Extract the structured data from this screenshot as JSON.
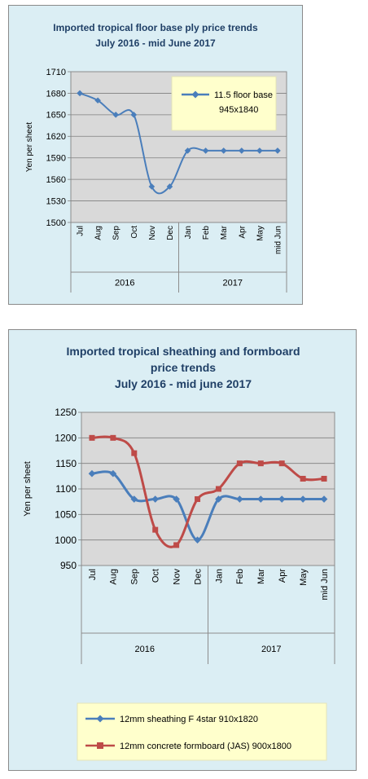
{
  "chart_data": [
    {
      "type": "line",
      "title": [
        "Imported tropical floor base ply price trends",
        "July 2016 - mid June 2017"
      ],
      "ylabel": "Yen per sheet",
      "ylim": [
        1500,
        1710
      ],
      "yticks": [
        1500,
        1530,
        1560,
        1590,
        1620,
        1650,
        1680,
        1710
      ],
      "categories": [
        "Jul",
        "Aug",
        "Sep",
        "Oct",
        "Nov",
        "Dec",
        "Jan",
        "Feb",
        "Mar",
        "Apr",
        "May",
        "mid Jun"
      ],
      "groups": [
        {
          "label": "2016",
          "from": 0,
          "to": 5
        },
        {
          "label": "2017",
          "from": 6,
          "to": 11
        }
      ],
      "grid": true,
      "legend_position": "top-right",
      "series": [
        {
          "name": [
            "11.5 floor base",
            "945x1840"
          ],
          "color": "#4a7ebb",
          "marker": "diamond",
          "values": [
            1680,
            1670,
            1650,
            1650,
            1550,
            1550,
            1600,
            1600,
            1600,
            1600,
            1600,
            1600
          ]
        }
      ]
    },
    {
      "type": "line",
      "title": [
        "Imported tropical sheathing and formboard",
        "price trends",
        "July 2016 - mid june 2017"
      ],
      "ylabel": "Yen per sheet",
      "ylim": [
        950,
        1250
      ],
      "yticks": [
        950,
        1000,
        1050,
        1100,
        1150,
        1200,
        1250
      ],
      "categories": [
        "Jul",
        "Aug",
        "Sep",
        "Oct",
        "Nov",
        "Dec",
        "Jan",
        "Feb",
        "Mar",
        "Apr",
        "May",
        "mid Jun"
      ],
      "groups": [
        {
          "label": "2016",
          "from": 0,
          "to": 5
        },
        {
          "label": "2017",
          "from": 6,
          "to": 11
        }
      ],
      "grid": true,
      "legend_position": "bottom",
      "series": [
        {
          "name": "12mm sheathing F 4star 910x1820",
          "color": "#4a7ebb",
          "marker": "diamond",
          "values": [
            1130,
            1130,
            1080,
            1080,
            1080,
            1000,
            1080,
            1080,
            1080,
            1080,
            1080,
            1080
          ]
        },
        {
          "name": "12mm concrete formboard (JAS) 900x1800",
          "color": "#be4b48",
          "marker": "square",
          "values": [
            1200,
            1200,
            1170,
            1020,
            990,
            1080,
            1100,
            1150,
            1150,
            1150,
            1120,
            1120
          ]
        }
      ]
    }
  ]
}
